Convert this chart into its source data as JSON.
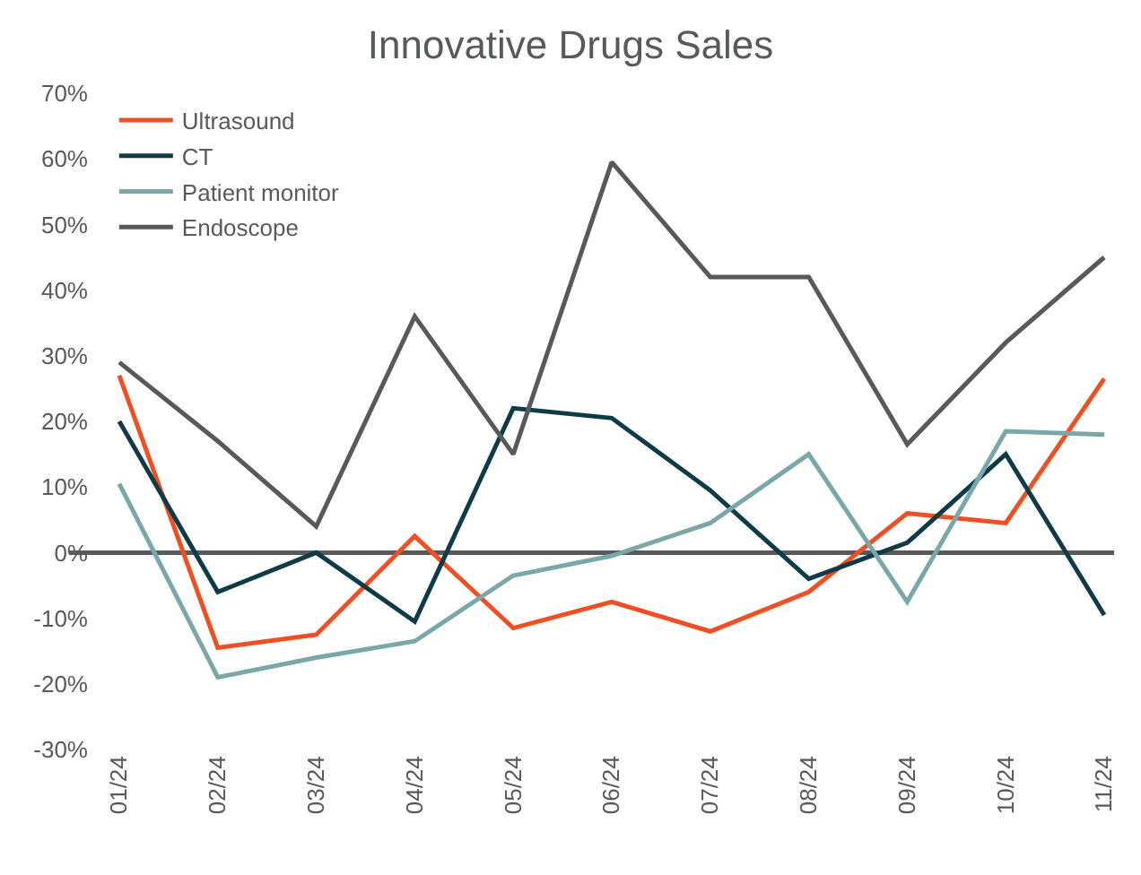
{
  "chart_data": {
    "type": "line",
    "title": "Innovative Drugs Sales",
    "categories": [
      "01/24",
      "02/24",
      "03/24",
      "04/24",
      "05/24",
      "06/24",
      "07/24",
      "08/24",
      "09/24",
      "10/24",
      "11/24"
    ],
    "series": [
      {
        "name": "Ultrasound",
        "color": "#f04e23",
        "values": [
          27,
          -14.5,
          -12.5,
          2.5,
          -11.5,
          -7.5,
          -12,
          -6,
          6,
          4.5,
          26.5
        ]
      },
      {
        "name": "CT",
        "color": "#0f3a47",
        "values": [
          20,
          -6,
          0,
          -10.5,
          22,
          20.5,
          9.5,
          -4,
          1.5,
          15,
          -9.5
        ]
      },
      {
        "name": "Patient monitor",
        "color": "#7aa8aa",
        "values": [
          10.5,
          -19,
          -16,
          -13.5,
          -3.5,
          -0.5,
          4.5,
          15,
          -7.5,
          18.5,
          18
        ]
      },
      {
        "name": "Endoscope",
        "color": "#58595b",
        "values": [
          29,
          17,
          4,
          36,
          15,
          59.5,
          42,
          42,
          16.5,
          32,
          45
        ]
      }
    ],
    "ylim": [
      -30,
      70
    ],
    "yticks": [
      {
        "value": -30,
        "label": "-30%"
      },
      {
        "value": -20,
        "label": "-20%"
      },
      {
        "value": -10,
        "label": "-10%"
      },
      {
        "value": 0,
        "label": "0%"
      },
      {
        "value": 10,
        "label": "10%"
      },
      {
        "value": 20,
        "label": "20%"
      },
      {
        "value": 30,
        "label": "30%"
      },
      {
        "value": 40,
        "label": "40%"
      },
      {
        "value": 50,
        "label": "50%"
      },
      {
        "value": 60,
        "label": "60%"
      },
      {
        "value": 70,
        "label": "70%"
      }
    ],
    "ref_lines": [
      {
        "axis": "y",
        "value": 0,
        "color": "#58595b"
      }
    ],
    "grid": false,
    "legend": "top left",
    "marker": "none",
    "line_style": "solid"
  }
}
